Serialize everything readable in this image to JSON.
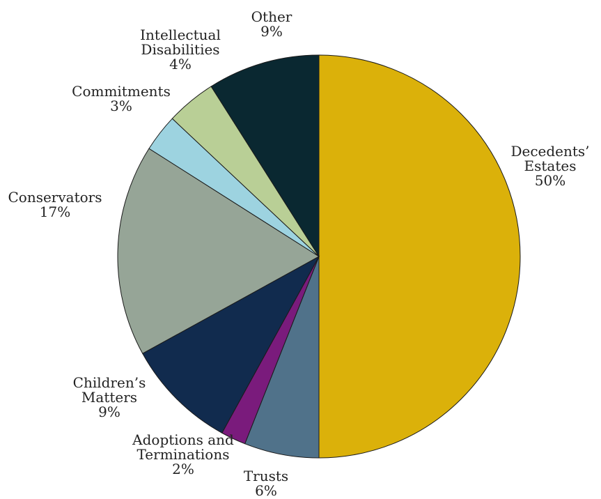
{
  "chart_data": {
    "type": "pie",
    "title": "",
    "unit": "%",
    "slices": [
      {
        "label_lines": [
          "Decedents’",
          "Estates"
        ],
        "value": 50,
        "value_label": "50%",
        "color": "#DBB10A"
      },
      {
        "label_lines": [
          "Trusts"
        ],
        "value": 6,
        "value_label": "6%",
        "color": "#50728A"
      },
      {
        "label_lines": [
          "Adoptions and",
          "Terminations"
        ],
        "value": 2,
        "value_label": "2%",
        "color": "#7A1B7C"
      },
      {
        "label_lines": [
          "Children’s",
          "Matters"
        ],
        "value": 9,
        "value_label": "9%",
        "color": "#112B4E"
      },
      {
        "label_lines": [
          "Conservators"
        ],
        "value": 17,
        "value_label": "17%",
        "color": "#96A597"
      },
      {
        "label_lines": [
          "Commitments"
        ],
        "value": 3,
        "value_label": "3%",
        "color": "#9DD3E0"
      },
      {
        "label_lines": [
          "Intellectual",
          "Disabilities"
        ],
        "value": 4,
        "value_label": "4%",
        "color": "#B9CF96"
      },
      {
        "label_lines": [
          "Other"
        ],
        "value": 9,
        "value_label": "9%",
        "color": "#0A2831"
      }
    ],
    "start_angle": "12 o'clock",
    "direction": "clockwise",
    "legend": "none"
  }
}
